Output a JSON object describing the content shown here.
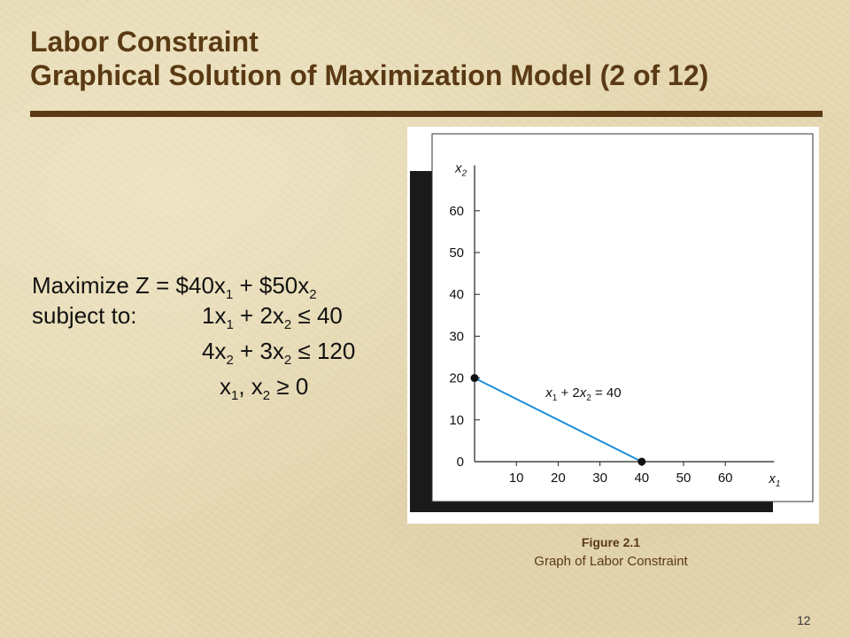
{
  "slide": {
    "title_line1": "Labor Constraint",
    "title_line2": "Graphical Solution of Maximization Model (2 of 12)",
    "page_number": "12"
  },
  "model": {
    "row1": [
      {
        "t": "Maximize  Z = $40x"
      },
      {
        "s": "1"
      },
      {
        "t": " + $50x"
      },
      {
        "s": "2"
      }
    ],
    "row2a": [
      {
        "t": "subject to:"
      }
    ],
    "row2b": [
      {
        "t": "1x"
      },
      {
        "s": "1"
      },
      {
        "t": " + 2x"
      },
      {
        "s": "2"
      },
      {
        "t": " ≤ 40"
      }
    ],
    "row3": [
      {
        "t": "4x"
      },
      {
        "s": "2"
      },
      {
        "t": " + 3x"
      },
      {
        "s": "2"
      },
      {
        "t": " ≤ 120"
      }
    ],
    "row4": [
      {
        "t": "x"
      },
      {
        "s": "1"
      },
      {
        "t": ", x"
      },
      {
        "s": "2"
      },
      {
        "t": " ≥ 0"
      }
    ]
  },
  "figure": {
    "number": "Figure 2.1",
    "caption": "Graph of Labor Constraint"
  },
  "chart_data": {
    "type": "line",
    "x_axis_label": "x1",
    "y_axis_label": "x2",
    "x_ticks": [
      0,
      10,
      20,
      30,
      40,
      50,
      60
    ],
    "y_ticks": [
      0,
      10,
      20,
      30,
      40,
      50,
      60
    ],
    "xlim": [
      0,
      70
    ],
    "ylim": [
      0,
      70
    ],
    "series": [
      {
        "name": "x1 + 2x2 = 40",
        "x": [
          0,
          40
        ],
        "y": [
          20,
          0
        ],
        "color": "#1a8fd8"
      }
    ],
    "points": [
      {
        "x": 0,
        "y": 20
      },
      {
        "x": 40,
        "y": 0
      }
    ]
  }
}
